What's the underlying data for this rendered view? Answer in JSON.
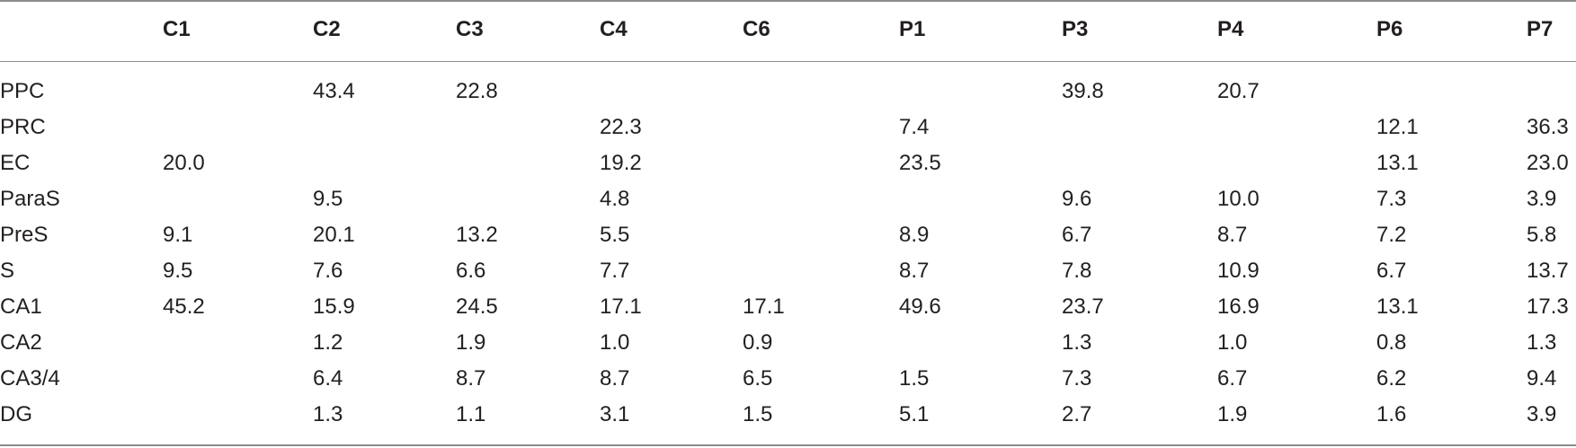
{
  "table": {
    "columns": [
      "",
      "C1",
      "C2",
      "C3",
      "C4",
      "C6",
      "P1",
      "P3",
      "P4",
      "P6",
      "P7"
    ],
    "rows": [
      [
        "PPC",
        "",
        "43.4",
        "22.8",
        "",
        "",
        "",
        "39.8",
        "20.7",
        "",
        ""
      ],
      [
        "PRC",
        "",
        "",
        "",
        "22.3",
        "",
        "7.4",
        "",
        "",
        "12.1",
        "36.3"
      ],
      [
        "EC",
        "20.0",
        "",
        "",
        "19.2",
        "",
        "23.5",
        "",
        "",
        "13.1",
        "23.0"
      ],
      [
        "ParaS",
        "",
        "9.5",
        "",
        "4.8",
        "",
        "",
        "9.6",
        "10.0",
        "7.3",
        "3.9"
      ],
      [
        "PreS",
        "9.1",
        "20.1",
        "13.2",
        "5.5",
        "",
        "8.9",
        "6.7",
        "8.7",
        "7.2",
        "5.8"
      ],
      [
        "S",
        "9.5",
        "7.6",
        "6.6",
        "7.7",
        "",
        "8.7",
        "7.8",
        "10.9",
        "6.7",
        "13.7"
      ],
      [
        "CA1",
        "45.2",
        "15.9",
        "24.5",
        "17.1",
        "17.1",
        "49.6",
        "23.7",
        "16.9",
        "13.1",
        "17.3"
      ],
      [
        "CA2",
        "",
        "1.2",
        "1.9",
        "1.0",
        "0.9",
        "",
        "1.3",
        "1.0",
        "0.8",
        "1.3"
      ],
      [
        "CA3/4",
        "",
        "6.4",
        "8.7",
        "8.7",
        "6.5",
        "1.5",
        "7.3",
        "6.7",
        "6.2",
        "9.4"
      ],
      [
        "DG",
        "",
        "1.3",
        "1.1",
        "3.1",
        "1.5",
        "5.1",
        "2.7",
        "1.9",
        "1.6",
        "3.9"
      ]
    ]
  }
}
